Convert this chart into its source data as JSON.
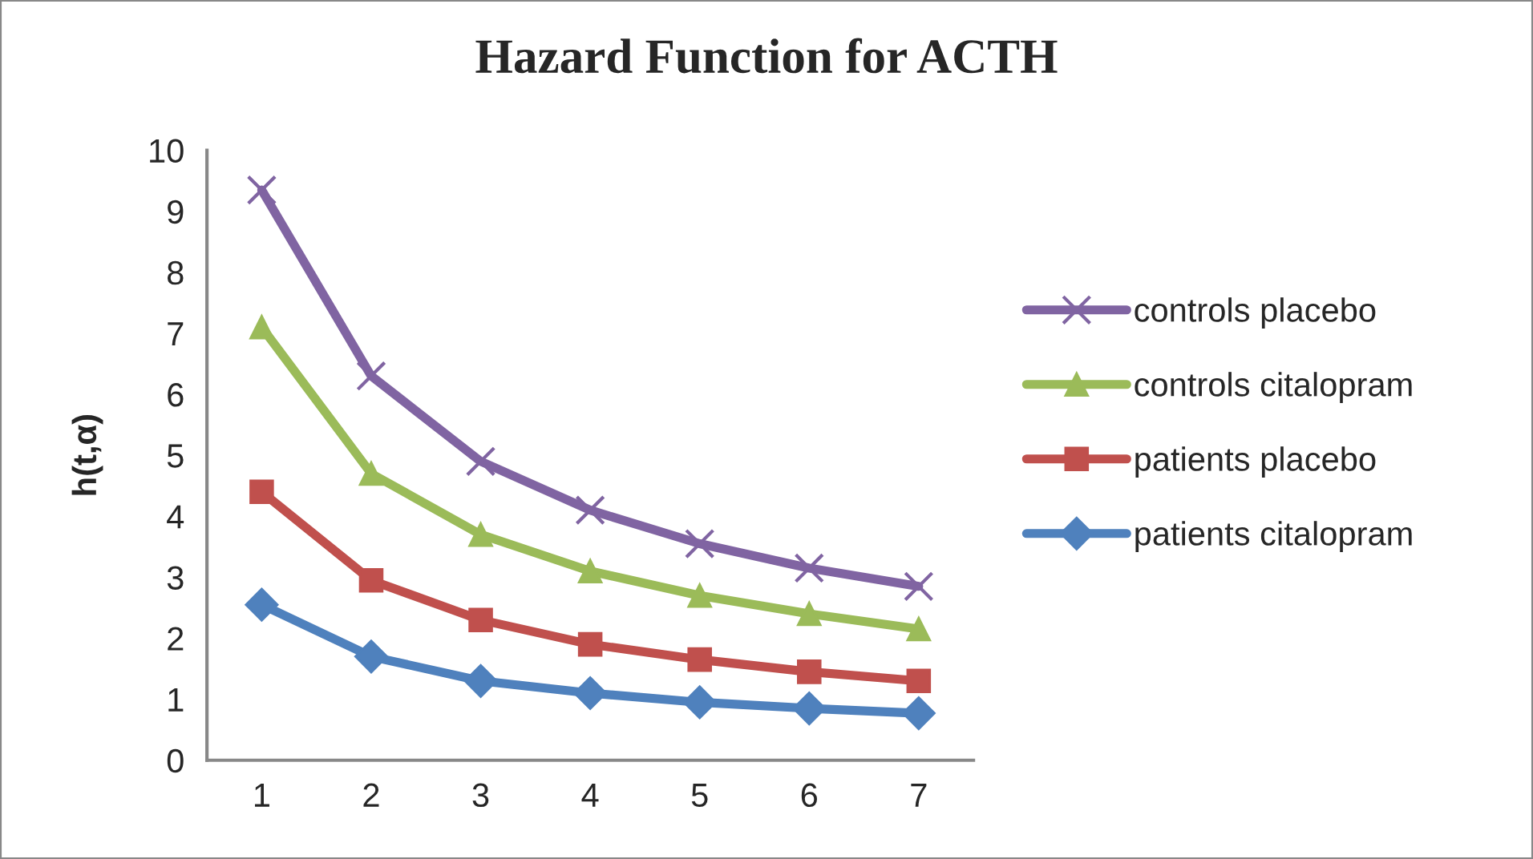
{
  "chart_data": {
    "type": "line",
    "title": "Hazard Function for ACTH",
    "ylabel": "h(t,α)",
    "categories": [
      "1",
      "2",
      "3",
      "4",
      "5",
      "6",
      "7"
    ],
    "series": [
      {
        "name": "controls placebo",
        "color": "#8064a2",
        "marker": "cross",
        "values": [
          9.35,
          6.3,
          4.9,
          4.1,
          3.55,
          3.15,
          2.85
        ]
      },
      {
        "name": "controls citalopram",
        "color": "#9bbb59",
        "marker": "triangle",
        "values": [
          7.1,
          4.7,
          3.7,
          3.1,
          2.7,
          2.4,
          2.15
        ]
      },
      {
        "name": "patients placebo",
        "color": "#c0504d",
        "marker": "square",
        "values": [
          4.4,
          2.95,
          2.3,
          1.9,
          1.65,
          1.45,
          1.3
        ]
      },
      {
        "name": "patients citalopram",
        "color": "#4f81bd",
        "marker": "diamond",
        "values": [
          2.55,
          1.7,
          1.3,
          1.1,
          0.95,
          0.85,
          0.77
        ]
      }
    ],
    "ylim": [
      0,
      10
    ],
    "yticks": [
      0,
      1,
      2,
      3,
      4,
      5,
      6,
      7,
      8,
      9,
      10
    ],
    "grid": false,
    "legend": "right",
    "line_style": "solid"
  }
}
